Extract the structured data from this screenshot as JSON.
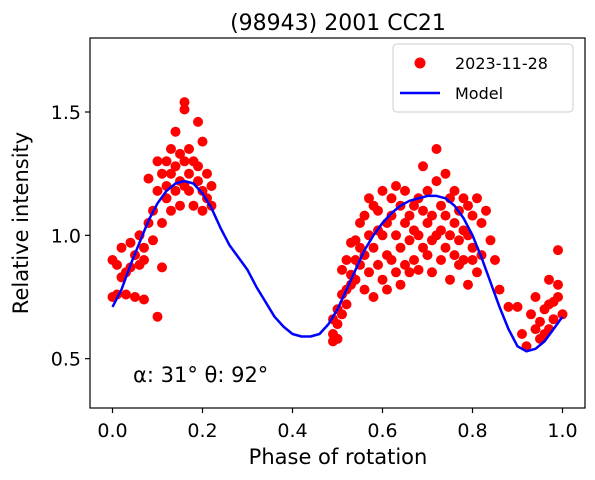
{
  "chart_data": {
    "type": "scatter",
    "title": "(98943) 2001 CC21",
    "xlabel": "Phase of rotation",
    "ylabel": "Relative intensity",
    "xlim": [
      -0.05,
      1.05
    ],
    "ylim": [
      0.3,
      1.8
    ],
    "xticks": [
      0.0,
      0.2,
      0.4,
      0.6,
      0.8,
      1.0
    ],
    "xtick_labels": [
      "0.0",
      "0.2",
      "0.4",
      "0.6",
      "0.8",
      "1.0"
    ],
    "yticks": [
      0.5,
      1.0,
      1.5
    ],
    "ytick_labels": [
      "0.5",
      "1.0",
      "1.5"
    ],
    "grid": false,
    "legend_position": "top-right",
    "annotation": "α: 31° θ: 92°",
    "colors": {
      "observations": "#ff0000",
      "model": "#0000ff"
    },
    "series": [
      {
        "name": "2023-11-28",
        "kind": "scatter",
        "points": [
          [
            0.0,
            0.9
          ],
          [
            0.0,
            0.75
          ],
          [
            0.01,
            0.88
          ],
          [
            0.01,
            0.76
          ],
          [
            0.02,
            0.83
          ],
          [
            0.02,
            0.95
          ],
          [
            0.03,
            0.85
          ],
          [
            0.03,
            0.76
          ],
          [
            0.04,
            0.87
          ],
          [
            0.04,
            0.97
          ],
          [
            0.05,
            0.92
          ],
          [
            0.05,
            0.75
          ],
          [
            0.06,
            1.0
          ],
          [
            0.06,
            0.88
          ],
          [
            0.07,
            0.9
          ],
          [
            0.07,
            0.95
          ],
          [
            0.07,
            0.74
          ],
          [
            0.08,
            1.05
          ],
          [
            0.08,
            1.23
          ],
          [
            0.09,
            0.98
          ],
          [
            0.09,
            1.1
          ],
          [
            0.1,
            0.67
          ],
          [
            0.1,
            1.3
          ],
          [
            0.1,
            1.18
          ],
          [
            0.11,
            1.25
          ],
          [
            0.11,
            0.87
          ],
          [
            0.11,
            1.05
          ],
          [
            0.12,
            1.3
          ],
          [
            0.12,
            1.2
          ],
          [
            0.12,
            1.15
          ],
          [
            0.13,
            1.35
          ],
          [
            0.13,
            1.25
          ],
          [
            0.13,
            1.1
          ],
          [
            0.14,
            1.42
          ],
          [
            0.14,
            1.28
          ],
          [
            0.14,
            1.18
          ],
          [
            0.15,
            1.33
          ],
          [
            0.15,
            1.22
          ],
          [
            0.15,
            1.12
          ],
          [
            0.16,
            1.54
          ],
          [
            0.16,
            1.3
          ],
          [
            0.16,
            1.2
          ],
          [
            0.16,
            1.51
          ],
          [
            0.17,
            1.35
          ],
          [
            0.17,
            1.25
          ],
          [
            0.17,
            1.18
          ],
          [
            0.18,
            1.3
          ],
          [
            0.18,
            1.12
          ],
          [
            0.19,
            1.46
          ],
          [
            0.19,
            1.22
          ],
          [
            0.19,
            1.28
          ],
          [
            0.2,
            1.38
          ],
          [
            0.2,
            1.18
          ],
          [
            0.2,
            1.1
          ],
          [
            0.21,
            1.25
          ],
          [
            0.21,
            1.15
          ],
          [
            0.22,
            1.12
          ],
          [
            0.22,
            1.2
          ],
          [
            0.49,
            0.6
          ],
          [
            0.49,
            0.66
          ],
          [
            0.49,
            0.57
          ],
          [
            0.5,
            0.7
          ],
          [
            0.5,
            0.58
          ],
          [
            0.5,
            0.64
          ],
          [
            0.51,
            0.86
          ],
          [
            0.51,
            0.68
          ],
          [
            0.51,
            0.76
          ],
          [
            0.52,
            0.9
          ],
          [
            0.52,
            0.72
          ],
          [
            0.52,
            0.78
          ],
          [
            0.53,
            0.97
          ],
          [
            0.53,
            0.8
          ],
          [
            0.53,
            0.84
          ],
          [
            0.54,
            0.98
          ],
          [
            0.54,
            0.82
          ],
          [
            0.54,
            0.9
          ],
          [
            0.55,
            1.05
          ],
          [
            0.55,
            0.88
          ],
          [
            0.55,
            0.95
          ],
          [
            0.56,
            1.08
          ],
          [
            0.56,
            0.92
          ],
          [
            0.56,
            0.78
          ],
          [
            0.57,
            1.15
          ],
          [
            0.57,
            1.0
          ],
          [
            0.57,
            0.85
          ],
          [
            0.58,
            1.12
          ],
          [
            0.58,
            0.95
          ],
          [
            0.58,
            0.75
          ],
          [
            0.59,
            1.02
          ],
          [
            0.59,
            1.1
          ],
          [
            0.59,
            0.88
          ],
          [
            0.6,
            1.18
          ],
          [
            0.6,
            1.0
          ],
          [
            0.6,
            0.82
          ],
          [
            0.61,
            1.05
          ],
          [
            0.61,
            0.92
          ],
          [
            0.61,
            0.78
          ],
          [
            0.62,
            1.15
          ],
          [
            0.62,
            1.08
          ],
          [
            0.62,
            0.9
          ],
          [
            0.63,
            1.2
          ],
          [
            0.63,
            1.0
          ],
          [
            0.63,
            0.85
          ],
          [
            0.64,
            1.12
          ],
          [
            0.64,
            0.95
          ],
          [
            0.64,
            0.8
          ],
          [
            0.65,
            1.18
          ],
          [
            0.65,
            1.05
          ],
          [
            0.65,
            0.88
          ],
          [
            0.66,
            1.08
          ],
          [
            0.66,
            0.98
          ],
          [
            0.66,
            0.85
          ],
          [
            0.67,
            1.12
          ],
          [
            0.67,
            1.02
          ],
          [
            0.67,
            0.9
          ],
          [
            0.68,
            1.15
          ],
          [
            0.68,
            1.0
          ],
          [
            0.68,
            0.86
          ],
          [
            0.69,
            1.28
          ],
          [
            0.69,
            1.1
          ],
          [
            0.69,
            0.95
          ],
          [
            0.7,
            1.18
          ],
          [
            0.7,
            1.05
          ],
          [
            0.7,
            0.92
          ],
          [
            0.71,
            1.08
          ],
          [
            0.71,
            0.98
          ],
          [
            0.71,
            0.85
          ],
          [
            0.72,
            1.22
          ],
          [
            0.72,
            1.35
          ],
          [
            0.72,
            1.0
          ],
          [
            0.73,
            1.12
          ],
          [
            0.73,
            1.02
          ],
          [
            0.73,
            0.9
          ],
          [
            0.74,
            1.25
          ],
          [
            0.74,
            1.08
          ],
          [
            0.74,
            0.95
          ],
          [
            0.75,
            1.15
          ],
          [
            0.75,
            1.0
          ],
          [
            0.75,
            0.82
          ],
          [
            0.76,
            1.18
          ],
          [
            0.76,
            1.05
          ],
          [
            0.76,
            0.92
          ],
          [
            0.77,
            1.1
          ],
          [
            0.77,
            0.98
          ],
          [
            0.77,
            0.88
          ],
          [
            0.78,
            1.15
          ],
          [
            0.78,
            1.02
          ],
          [
            0.78,
            0.9
          ],
          [
            0.79,
            1.12
          ],
          [
            0.79,
            1.0
          ],
          [
            0.79,
            0.8
          ],
          [
            0.8,
            1.08
          ],
          [
            0.8,
            0.95
          ],
          [
            0.8,
            0.9
          ],
          [
            0.81,
            1.15
          ],
          [
            0.81,
            0.85
          ],
          [
            0.82,
            1.05
          ],
          [
            0.82,
            0.92
          ],
          [
            0.83,
            1.1
          ],
          [
            0.84,
            0.98
          ],
          [
            0.85,
            0.9
          ],
          [
            0.86,
            0.78
          ],
          [
            0.88,
            0.71
          ],
          [
            0.9,
            0.71
          ],
          [
            0.91,
            0.6
          ],
          [
            0.92,
            0.55
          ],
          [
            0.93,
            0.68
          ],
          [
            0.94,
            0.75
          ],
          [
            0.94,
            0.62
          ],
          [
            0.95,
            0.65
          ],
          [
            0.95,
            0.58
          ],
          [
            0.96,
            0.7
          ],
          [
            0.96,
            0.6
          ],
          [
            0.97,
            0.62
          ],
          [
            0.97,
            0.72
          ],
          [
            0.97,
            0.82
          ],
          [
            0.98,
            0.66
          ],
          [
            0.98,
            0.73
          ],
          [
            0.99,
            0.75
          ],
          [
            0.99,
            0.8
          ],
          [
            0.99,
            0.94
          ],
          [
            1.0,
            0.68
          ]
        ]
      },
      {
        "name": "Model",
        "kind": "line",
        "points": [
          [
            0.0,
            0.71
          ],
          [
            0.02,
            0.78
          ],
          [
            0.04,
            0.88
          ],
          [
            0.06,
            0.97
          ],
          [
            0.08,
            1.06
          ],
          [
            0.1,
            1.13
          ],
          [
            0.12,
            1.18
          ],
          [
            0.14,
            1.21
          ],
          [
            0.16,
            1.22
          ],
          [
            0.18,
            1.21
          ],
          [
            0.2,
            1.17
          ],
          [
            0.22,
            1.11
          ],
          [
            0.24,
            1.03
          ],
          [
            0.26,
            0.96
          ],
          [
            0.28,
            0.91
          ],
          [
            0.3,
            0.86
          ],
          [
            0.32,
            0.79
          ],
          [
            0.34,
            0.73
          ],
          [
            0.36,
            0.67
          ],
          [
            0.38,
            0.63
          ],
          [
            0.4,
            0.6
          ],
          [
            0.42,
            0.59
          ],
          [
            0.44,
            0.59
          ],
          [
            0.46,
            0.6
          ],
          [
            0.48,
            0.64
          ],
          [
            0.5,
            0.7
          ],
          [
            0.52,
            0.78
          ],
          [
            0.54,
            0.86
          ],
          [
            0.56,
            0.94
          ],
          [
            0.58,
            1.0
          ],
          [
            0.6,
            1.05
          ],
          [
            0.62,
            1.09
          ],
          [
            0.64,
            1.12
          ],
          [
            0.66,
            1.14
          ],
          [
            0.68,
            1.15
          ],
          [
            0.7,
            1.16
          ],
          [
            0.72,
            1.16
          ],
          [
            0.74,
            1.15
          ],
          [
            0.76,
            1.12
          ],
          [
            0.78,
            1.07
          ],
          [
            0.8,
            1.0
          ],
          [
            0.82,
            0.91
          ],
          [
            0.84,
            0.81
          ],
          [
            0.86,
            0.71
          ],
          [
            0.88,
            0.62
          ],
          [
            0.9,
            0.55
          ],
          [
            0.92,
            0.53
          ],
          [
            0.94,
            0.54
          ],
          [
            0.96,
            0.57
          ],
          [
            0.98,
            0.62
          ],
          [
            1.0,
            0.67
          ]
        ]
      }
    ]
  }
}
